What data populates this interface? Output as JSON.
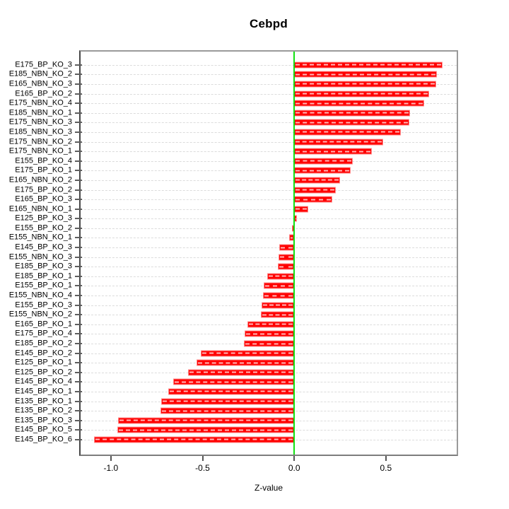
{
  "chart_data": {
    "type": "bar",
    "orientation": "horizontal",
    "title": "Cebpd",
    "xlabel": "Z-value",
    "ylabel": "",
    "legend": "none",
    "grid": "horizontal-dashed",
    "xlim": [
      -1.173,
      0.894
    ],
    "x_ticks": [
      -1.0,
      -0.5,
      0.0,
      0.5
    ],
    "x_tick_labels": [
      "-1.0",
      "-0.5",
      "0.0",
      "0.5"
    ],
    "zero_line": 0.0,
    "categories": [
      "E175_BP_KO_3",
      "E185_NBN_KO_2",
      "E165_NBN_KO_3",
      "E165_BP_KO_2",
      "E175_NBN_KO_4",
      "E185_NBN_KO_1",
      "E175_NBN_KO_3",
      "E185_NBN_KO_3",
      "E175_NBN_KO_2",
      "E175_NBN_KO_1",
      "E155_BP_KO_4",
      "E175_BP_KO_1",
      "E165_NBN_KO_2",
      "E175_BP_KO_2",
      "E165_BP_KO_3",
      "E165_NBN_KO_1",
      "E125_BP_KO_3",
      "E155_BP_KO_2",
      "E155_NBN_KO_1",
      "E145_BP_KO_3",
      "E155_NBN_KO_3",
      "E185_BP_KO_3",
      "E185_BP_KO_1",
      "E155_BP_KO_1",
      "E155_NBN_KO_4",
      "E155_BP_KO_3",
      "E155_NBN_KO_2",
      "E165_BP_KO_1",
      "E175_BP_KO_4",
      "E185_BP_KO_2",
      "E145_BP_KO_2",
      "E125_BP_KO_1",
      "E125_BP_KO_2",
      "E145_BP_KO_4",
      "E145_BP_KO_1",
      "E135_BP_KO_1",
      "E135_BP_KO_2",
      "E135_BP_KO_3",
      "E145_BP_KO_5",
      "E145_BP_KO_6"
    ],
    "values": [
      0.816,
      0.784,
      0.782,
      0.743,
      0.714,
      0.638,
      0.635,
      0.588,
      0.49,
      0.427,
      0.323,
      0.31,
      0.252,
      0.23,
      0.21,
      0.078,
      0.016,
      -0.013,
      -0.028,
      -0.08,
      -0.084,
      -0.089,
      -0.147,
      -0.166,
      -0.17,
      -0.178,
      -0.184,
      -0.256,
      -0.273,
      -0.277,
      -0.511,
      -0.535,
      -0.581,
      -0.664,
      -0.693,
      -0.731,
      -0.734,
      -0.967,
      -0.972,
      -1.098
    ],
    "colors": {
      "bar_fill": "#ff0000",
      "bar_edge": "#ff8f8f",
      "bar_dash": "#ffffff",
      "zero_line": "#12e112",
      "grid_line": "#dcdcdc",
      "box_border": "#9a9a9a",
      "text": "#000000",
      "background": "#ffffff"
    }
  }
}
